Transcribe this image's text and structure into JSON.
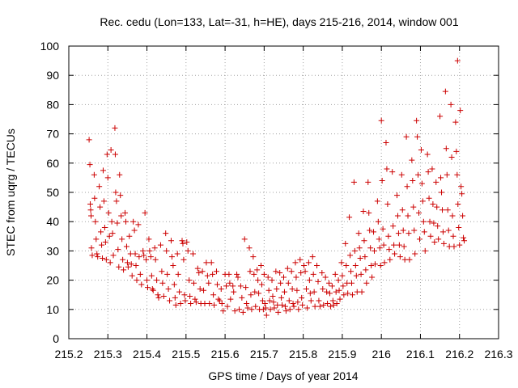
{
  "chart_data": {
    "type": "scatter",
    "title": "Rec. cedu (Lon=133, Lat=-31, h=HE), days 215-216, 2014, window 001",
    "xlabel": "GPS time / Days of year 2014",
    "ylabel": "STEC from uqrg / TECUs",
    "xlim": [
      215.2,
      216.3
    ],
    "ylim": [
      0,
      100
    ],
    "xticks": [
      "215.2",
      "215.3",
      "215.4",
      "215.5",
      "215.6",
      "215.7",
      "215.8",
      "215.9",
      "216",
      "216.1",
      "216.2",
      "216.3"
    ],
    "yticks": [
      "0",
      "10",
      "20",
      "30",
      "40",
      "50",
      "60",
      "70",
      "80",
      "90",
      "100"
    ],
    "grid": true,
    "marker": "+",
    "color": "#cc0000",
    "points": [
      [
        215.252,
        68.0
      ],
      [
        215.254,
        59.5
      ],
      [
        215.255,
        46.0
      ],
      [
        215.256,
        44.0
      ],
      [
        215.257,
        42.0
      ],
      [
        215.258,
        31.0
      ],
      [
        215.26,
        28.5
      ],
      [
        215.265,
        56.0
      ],
      [
        215.266,
        48.0
      ],
      [
        215.268,
        40.0
      ],
      [
        215.27,
        34.0
      ],
      [
        215.272,
        29.0
      ],
      [
        215.274,
        28.0
      ],
      [
        215.278,
        52.0
      ],
      [
        215.28,
        45.0
      ],
      [
        215.282,
        36.5
      ],
      [
        215.284,
        32.0
      ],
      [
        215.286,
        27.5
      ],
      [
        215.288,
        57.5
      ],
      [
        215.29,
        47.0
      ],
      [
        215.292,
        38.0
      ],
      [
        215.294,
        33.0
      ],
      [
        215.296,
        27.0
      ],
      [
        215.298,
        63.0
      ],
      [
        215.3,
        55.0
      ],
      [
        215.302,
        43.0
      ],
      [
        215.304,
        35.0
      ],
      [
        215.306,
        26.0
      ],
      [
        215.308,
        64.5
      ],
      [
        215.31,
        40.0
      ],
      [
        215.312,
        36.0
      ],
      [
        215.314,
        28.5
      ],
      [
        215.318,
        72.0
      ],
      [
        215.319,
        63.0
      ],
      [
        215.32,
        50.0
      ],
      [
        215.322,
        47.0
      ],
      [
        215.324,
        39.5
      ],
      [
        215.326,
        30.5
      ],
      [
        215.328,
        24.5
      ],
      [
        215.33,
        56.0
      ],
      [
        215.332,
        49.0
      ],
      [
        215.334,
        42.0
      ],
      [
        215.336,
        34.0
      ],
      [
        215.338,
        27.0
      ],
      [
        215.34,
        23.5
      ],
      [
        215.344,
        43.0
      ],
      [
        215.346,
        40.0
      ],
      [
        215.348,
        31.5
      ],
      [
        215.35,
        26.0
      ],
      [
        215.352,
        24.5
      ],
      [
        215.355,
        35.0
      ],
      [
        215.358,
        29.0
      ],
      [
        215.36,
        25.5
      ],
      [
        215.362,
        21.5
      ],
      [
        215.365,
        40.0
      ],
      [
        215.368,
        37.0
      ],
      [
        215.37,
        29.0
      ],
      [
        215.372,
        25.0
      ],
      [
        215.374,
        20.0
      ],
      [
        215.378,
        39.0
      ],
      [
        215.38,
        28.0
      ],
      [
        215.383,
        22.0
      ],
      [
        215.386,
        18.5
      ],
      [
        215.39,
        30.0
      ],
      [
        215.392,
        28.5
      ],
      [
        215.395,
        43.0
      ],
      [
        215.398,
        27.0
      ],
      [
        215.4,
        20.0
      ],
      [
        215.402,
        17.5
      ],
      [
        215.405,
        34.0
      ],
      [
        215.407,
        30.0
      ],
      [
        215.41,
        28.0
      ],
      [
        215.412,
        21.5
      ],
      [
        215.414,
        17.0
      ],
      [
        215.416,
        16.5
      ],
      [
        215.42,
        31.0
      ],
      [
        215.422,
        27.0
      ],
      [
        215.425,
        20.0
      ],
      [
        215.428,
        15.0
      ],
      [
        215.43,
        14.0
      ],
      [
        215.435,
        32.0
      ],
      [
        215.438,
        23.0
      ],
      [
        215.44,
        19.0
      ],
      [
        215.443,
        14.5
      ],
      [
        215.448,
        36.0
      ],
      [
        215.45,
        30.0
      ],
      [
        215.452,
        22.0
      ],
      [
        215.455,
        17.0
      ],
      [
        215.458,
        13.0
      ],
      [
        215.462,
        33.5
      ],
      [
        215.464,
        28.0
      ],
      [
        215.467,
        25.0
      ],
      [
        215.47,
        18.5
      ],
      [
        215.472,
        14.0
      ],
      [
        215.474,
        11.5
      ],
      [
        215.478,
        29.0
      ],
      [
        215.48,
        22.0
      ],
      [
        215.483,
        16.0
      ],
      [
        215.486,
        12.0
      ],
      [
        215.49,
        33.5
      ],
      [
        215.492,
        32.5
      ],
      [
        215.494,
        27.0
      ],
      [
        215.496,
        15.0
      ],
      [
        215.498,
        13.0
      ],
      [
        215.502,
        33.0
      ],
      [
        215.505,
        30.0
      ],
      [
        215.508,
        20.0
      ],
      [
        215.51,
        14.5
      ],
      [
        215.512,
        12.0
      ],
      [
        215.518,
        29.0
      ],
      [
        215.52,
        19.0
      ],
      [
        215.523,
        13.5
      ],
      [
        215.526,
        12.5
      ],
      [
        215.53,
        24.0
      ],
      [
        215.533,
        22.5
      ],
      [
        215.536,
        17.0
      ],
      [
        215.538,
        12.0
      ],
      [
        215.542,
        23.0
      ],
      [
        215.545,
        16.5
      ],
      [
        215.548,
        12.0
      ],
      [
        215.552,
        26.0
      ],
      [
        215.555,
        21.5
      ],
      [
        215.558,
        19.0
      ],
      [
        215.56,
        12.0
      ],
      [
        215.565,
        26.0
      ],
      [
        215.568,
        22.0
      ],
      [
        215.57,
        15.0
      ],
      [
        215.572,
        11.5
      ],
      [
        215.578,
        23.0
      ],
      [
        215.58,
        18.5
      ],
      [
        215.583,
        13.5
      ],
      [
        215.586,
        13.0
      ],
      [
        215.59,
        17.0
      ],
      [
        215.592,
        12.0
      ],
      [
        215.595,
        9.5
      ],
      [
        215.6,
        22.0
      ],
      [
        215.603,
        18.0
      ],
      [
        215.606,
        11.0
      ],
      [
        215.61,
        22.0
      ],
      [
        215.612,
        19.0
      ],
      [
        215.614,
        13.5
      ],
      [
        215.62,
        18.0
      ],
      [
        215.622,
        16.0
      ],
      [
        215.625,
        9.5
      ],
      [
        215.63,
        22.0
      ],
      [
        215.633,
        21.0
      ],
      [
        215.636,
        10.0
      ],
      [
        215.64,
        18.0
      ],
      [
        215.643,
        14.0
      ],
      [
        215.646,
        9.0
      ],
      [
        215.65,
        34.0
      ],
      [
        215.653,
        17.5
      ],
      [
        215.655,
        12.0
      ],
      [
        215.658,
        10.5
      ],
      [
        215.662,
        31.0
      ],
      [
        215.664,
        23.0
      ],
      [
        215.666,
        15.0
      ],
      [
        215.668,
        10.0
      ],
      [
        215.672,
        28.0
      ],
      [
        215.674,
        22.0
      ],
      [
        215.676,
        16.0
      ],
      [
        215.678,
        11.0
      ],
      [
        215.682,
        23.5
      ],
      [
        215.684,
        20.0
      ],
      [
        215.686,
        15.5
      ],
      [
        215.688,
        10.0
      ],
      [
        215.692,
        25.0
      ],
      [
        215.694,
        18.5
      ],
      [
        215.696,
        13.0
      ],
      [
        215.698,
        10.0
      ],
      [
        215.7,
        22.0
      ],
      [
        215.702,
        12.0
      ],
      [
        215.704,
        10.5
      ],
      [
        215.706,
        8.0
      ],
      [
        215.71,
        21.0
      ],
      [
        215.712,
        16.5
      ],
      [
        215.714,
        13.0
      ],
      [
        215.716,
        10.0
      ],
      [
        215.72,
        20.0
      ],
      [
        215.722,
        14.5
      ],
      [
        215.724,
        12.5
      ],
      [
        215.726,
        10.5
      ],
      [
        215.73,
        23.0
      ],
      [
        215.732,
        17.0
      ],
      [
        215.734,
        11.5
      ],
      [
        215.736,
        9.0
      ],
      [
        215.74,
        22.5
      ],
      [
        215.742,
        19.0
      ],
      [
        215.744,
        14.0
      ],
      [
        215.746,
        11.5
      ],
      [
        215.75,
        21.0
      ],
      [
        215.752,
        16.0
      ],
      [
        215.754,
        11.0
      ],
      [
        215.756,
        9.5
      ],
      [
        215.76,
        24.0
      ],
      [
        215.762,
        19.0
      ],
      [
        215.764,
        13.0
      ],
      [
        215.766,
        10.0
      ],
      [
        215.77,
        23.0
      ],
      [
        215.772,
        17.0
      ],
      [
        215.774,
        12.0
      ],
      [
        215.776,
        11.0
      ],
      [
        215.78,
        26.0
      ],
      [
        215.782,
        21.0
      ],
      [
        215.784,
        16.5
      ],
      [
        215.786,
        12.5
      ],
      [
        215.788,
        10.0
      ],
      [
        215.792,
        27.0
      ],
      [
        215.794,
        22.5
      ],
      [
        215.796,
        14.0
      ],
      [
        215.798,
        11.5
      ],
      [
        215.802,
        25.0
      ],
      [
        215.805,
        23.0
      ],
      [
        215.808,
        17.0
      ],
      [
        215.81,
        10.5
      ],
      [
        215.814,
        26.0
      ],
      [
        215.816,
        20.0
      ],
      [
        215.818,
        15.5
      ],
      [
        215.82,
        13.0
      ],
      [
        215.824,
        28.0
      ],
      [
        215.826,
        22.0
      ],
      [
        215.828,
        16.0
      ],
      [
        215.83,
        11.0
      ],
      [
        215.835,
        25.0
      ],
      [
        215.838,
        19.5
      ],
      [
        215.84,
        13.0
      ],
      [
        215.843,
        11.0
      ],
      [
        215.848,
        22.5
      ],
      [
        215.85,
        17.0
      ],
      [
        215.852,
        11.5
      ],
      [
        215.857,
        21.0
      ],
      [
        215.86,
        16.0
      ],
      [
        215.862,
        12.0
      ],
      [
        215.866,
        19.0
      ],
      [
        215.868,
        15.5
      ],
      [
        215.87,
        11.0
      ],
      [
        215.874,
        18.0
      ],
      [
        215.876,
        13.0
      ],
      [
        215.878,
        11.5
      ],
      [
        215.882,
        22.0
      ],
      [
        215.884,
        16.0
      ],
      [
        215.886,
        12.0
      ],
      [
        215.89,
        20.0
      ],
      [
        215.892,
        16.5
      ],
      [
        215.894,
        13.5
      ],
      [
        215.898,
        26.0
      ],
      [
        215.9,
        21.5
      ],
      [
        215.902,
        18.0
      ],
      [
        215.904,
        15.0
      ],
      [
        215.908,
        32.5
      ],
      [
        215.91,
        25.0
      ],
      [
        215.912,
        19.0
      ],
      [
        215.914,
        15.5
      ],
      [
        215.918,
        41.5
      ],
      [
        215.92,
        28.5
      ],
      [
        215.922,
        23.0
      ],
      [
        215.924,
        19.0
      ],
      [
        215.926,
        15.0
      ],
      [
        215.93,
        53.5
      ],
      [
        215.932,
        30.0
      ],
      [
        215.934,
        25.0
      ],
      [
        215.936,
        21.5
      ],
      [
        215.938,
        16.0
      ],
      [
        215.942,
        36.0
      ],
      [
        215.944,
        31.0
      ],
      [
        215.946,
        27.5
      ],
      [
        215.948,
        22.0
      ],
      [
        215.95,
        16.0
      ],
      [
        215.954,
        43.5
      ],
      [
        215.956,
        33.5
      ],
      [
        215.958,
        28.0
      ],
      [
        215.96,
        23.5
      ],
      [
        215.962,
        19.0
      ],
      [
        215.966,
        53.5
      ],
      [
        215.968,
        43.0
      ],
      [
        215.97,
        37.0
      ],
      [
        215.972,
        31.0
      ],
      [
        215.974,
        25.0
      ],
      [
        215.976,
        21.0
      ],
      [
        215.98,
        36.5
      ],
      [
        215.982,
        30.0
      ],
      [
        215.984,
        25.5
      ],
      [
        215.99,
        47.0
      ],
      [
        215.992,
        40.0
      ],
      [
        215.994,
        34.0
      ],
      [
        215.996,
        31.0
      ],
      [
        215.998,
        25.0
      ],
      [
        216.0,
        74.5
      ],
      [
        216.002,
        54.0
      ],
      [
        216.004,
        37.5
      ],
      [
        216.006,
        32.0
      ],
      [
        216.008,
        26.0
      ],
      [
        216.012,
        67.0
      ],
      [
        216.014,
        58.0
      ],
      [
        216.016,
        46.0
      ],
      [
        216.018,
        35.0
      ],
      [
        216.02,
        30.5
      ],
      [
        216.022,
        27.0
      ],
      [
        216.028,
        57.0
      ],
      [
        216.03,
        38.5
      ],
      [
        216.032,
        32.0
      ],
      [
        216.034,
        29.0
      ],
      [
        216.04,
        49.0
      ],
      [
        216.042,
        42.0
      ],
      [
        216.044,
        36.0
      ],
      [
        216.046,
        32.0
      ],
      [
        216.048,
        28.0
      ],
      [
        216.052,
        56.0
      ],
      [
        216.054,
        44.0
      ],
      [
        216.056,
        37.0
      ],
      [
        216.058,
        31.5
      ],
      [
        216.06,
        27.0
      ],
      [
        216.064,
        69.0
      ],
      [
        216.066,
        52.0
      ],
      [
        216.068,
        42.0
      ],
      [
        216.07,
        36.0
      ],
      [
        216.072,
        27.0
      ],
      [
        216.078,
        61.0
      ],
      [
        216.08,
        54.0
      ],
      [
        216.082,
        45.0
      ],
      [
        216.084,
        37.0
      ],
      [
        216.086,
        29.0
      ],
      [
        216.09,
        74.5
      ],
      [
        216.092,
        69.0
      ],
      [
        216.094,
        56.0
      ],
      [
        216.096,
        43.0
      ],
      [
        216.098,
        34.0
      ],
      [
        216.102,
        64.5
      ],
      [
        216.104,
        53.0
      ],
      [
        216.106,
        47.0
      ],
      [
        216.108,
        40.0
      ],
      [
        216.11,
        36.5
      ],
      [
        216.112,
        30.0
      ],
      [
        216.118,
        63.0
      ],
      [
        216.12,
        57.0
      ],
      [
        216.122,
        48.0
      ],
      [
        216.124,
        40.0
      ],
      [
        216.126,
        35.0
      ],
      [
        216.13,
        58.0
      ],
      [
        216.132,
        46.0
      ],
      [
        216.134,
        39.5
      ],
      [
        216.136,
        33.0
      ],
      [
        216.14,
        53.5
      ],
      [
        216.142,
        45.0
      ],
      [
        216.144,
        38.5
      ],
      [
        216.146,
        34.0
      ],
      [
        216.15,
        76.0
      ],
      [
        216.152,
        55.0
      ],
      [
        216.154,
        50.0
      ],
      [
        216.156,
        44.0
      ],
      [
        216.158,
        36.5
      ],
      [
        216.16,
        32.5
      ],
      [
        216.164,
        84.5
      ],
      [
        216.166,
        65.0
      ],
      [
        216.168,
        56.0
      ],
      [
        216.17,
        44.0
      ],
      [
        216.172,
        37.0
      ],
      [
        216.174,
        31.5
      ],
      [
        216.178,
        80.0
      ],
      [
        216.18,
        62.0
      ],
      [
        216.182,
        42.0
      ],
      [
        216.184,
        35.0
      ],
      [
        216.186,
        31.5
      ],
      [
        216.19,
        74.0
      ],
      [
        216.192,
        64.0
      ],
      [
        216.194,
        56.0
      ],
      [
        216.196,
        46.0
      ],
      [
        216.198,
        38.0
      ],
      [
        216.2,
        32.0
      ],
      [
        216.195,
        95.0
      ],
      [
        216.202,
        78.0
      ],
      [
        216.204,
        52.0
      ],
      [
        216.206,
        49.5
      ],
      [
        216.208,
        42.0
      ],
      [
        216.21,
        34.5
      ],
      [
        216.212,
        33.5
      ]
    ]
  }
}
